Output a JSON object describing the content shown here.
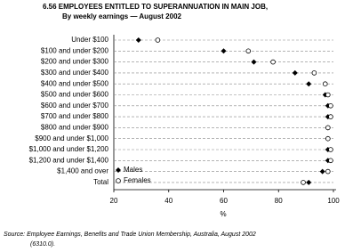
{
  "chart_data": {
    "type": "dot",
    "title": "6.56  EMPLOYEES ENTITLED TO SUPERANNUATION IN MAIN JOB,",
    "subtitle": "By weekly earnings — August 2002",
    "categories": [
      "Under $100",
      "$100 and under $200",
      "$200 and under $300",
      "$300 and under $400",
      "$400 and under $500",
      "$500 and under $600",
      "$600 and under $700",
      "$700 and under $800",
      "$800 and under $900",
      "$900 and under $1,000",
      "$1,000 and under $1,200",
      "$1,200 and under $1,400",
      "$1,400 and over",
      "Total"
    ],
    "series": [
      {
        "name": "Males",
        "color": "#000000",
        "values": [
          29,
          60,
          71,
          86,
          91,
          97,
          98,
          98,
          98,
          98,
          98,
          98,
          96,
          91
        ]
      },
      {
        "name": "Females",
        "color": "#000000",
        "values": [
          36,
          69,
          78,
          93,
          97,
          98,
          99,
          99,
          98,
          98,
          99,
          99,
          98,
          89
        ]
      }
    ],
    "xlim": [
      20,
      100
    ],
    "xticks": [
      20,
      40,
      60,
      80,
      100
    ],
    "xlabel": "%",
    "legend": "bottom-left",
    "grid": true,
    "source": [
      "Source: Employee Earnings, Benefits and Trade Union Membership, Australia, August 2002",
      "(6310.0)."
    ]
  }
}
